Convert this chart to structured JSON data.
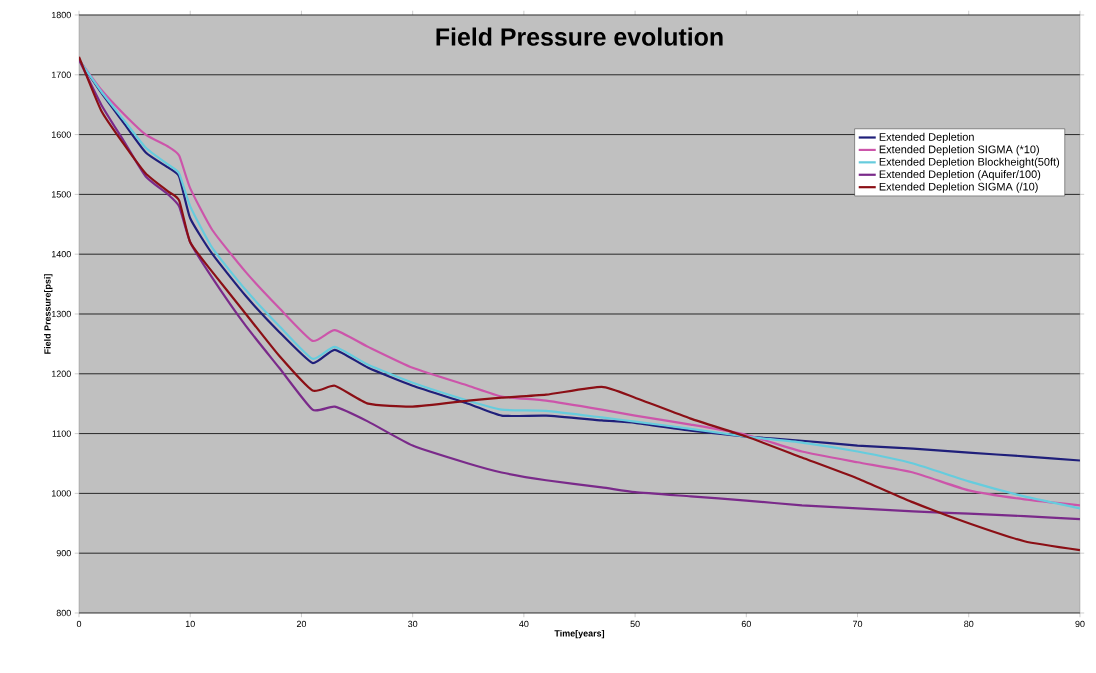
{
  "chart_data": {
    "type": "line",
    "title": "Field Pressure evolution",
    "xlabel": "Time[years]",
    "ylabel": "Field Pressure[psi]",
    "x": [
      0,
      2,
      4,
      6,
      8,
      9,
      10,
      12,
      15,
      18,
      21,
      23,
      26,
      30,
      35,
      38,
      42,
      47,
      50,
      55,
      60,
      65,
      70,
      75,
      80,
      85,
      90
    ],
    "series": [
      {
        "name": "Extended Depletion",
        "color": "#1f1f7a",
        "values": [
          1725,
          1670,
          1620,
          1570,
          1545,
          1530,
          1460,
          1400,
          1330,
          1270,
          1218,
          1240,
          1210,
          1180,
          1150,
          1130,
          1130,
          1122,
          1118,
          1105,
          1095,
          1088,
          1080,
          1075,
          1068,
          1062,
          1055
        ]
      },
      {
        "name": "Extended Depletion SIGMA (*10)",
        "color": "#cc55aa",
        "values": [
          1725,
          1675,
          1635,
          1600,
          1580,
          1565,
          1510,
          1440,
          1370,
          1310,
          1255,
          1273,
          1245,
          1210,
          1180,
          1162,
          1155,
          1140,
          1130,
          1115,
          1098,
          1070,
          1052,
          1035,
          1005,
          990,
          980
        ]
      },
      {
        "name": "Extended Depletion Blockheight(50ft)",
        "color": "#66ccdd",
        "values": [
          1725,
          1672,
          1625,
          1578,
          1550,
          1535,
          1480,
          1410,
          1340,
          1280,
          1225,
          1245,
          1215,
          1185,
          1155,
          1140,
          1138,
          1127,
          1120,
          1108,
          1095,
          1085,
          1070,
          1050,
          1020,
          995,
          975
        ]
      },
      {
        "name": "Extended Depletion (Aquifer/100)",
        "color": "#7a2a8a",
        "values": [
          1725,
          1650,
          1590,
          1530,
          1500,
          1480,
          1420,
          1360,
          1280,
          1210,
          1140,
          1145,
          1120,
          1080,
          1050,
          1035,
          1022,
          1010,
          1002,
          995,
          988,
          980,
          975,
          970,
          966,
          962,
          957
        ]
      },
      {
        "name": "Extended Depletion SIGMA (/10)",
        "color": "#8b0f15",
        "values": [
          1730,
          1640,
          1585,
          1535,
          1505,
          1490,
          1420,
          1370,
          1300,
          1230,
          1172,
          1180,
          1150,
          1145,
          1155,
          1160,
          1165,
          1178,
          1160,
          1125,
          1095,
          1060,
          1025,
          985,
          950,
          920,
          905
        ]
      }
    ],
    "xlim": [
      0,
      90
    ],
    "xticks": [
      0,
      10,
      20,
      30,
      40,
      50,
      60,
      70,
      80,
      90
    ],
    "ylim": [
      800,
      1800
    ],
    "yticks": [
      800,
      900,
      1000,
      1100,
      1200,
      1300,
      1400,
      1500,
      1600,
      1700,
      1800
    ],
    "grid": "y",
    "legend": "top right",
    "marker": "none",
    "line_style": "solid"
  }
}
